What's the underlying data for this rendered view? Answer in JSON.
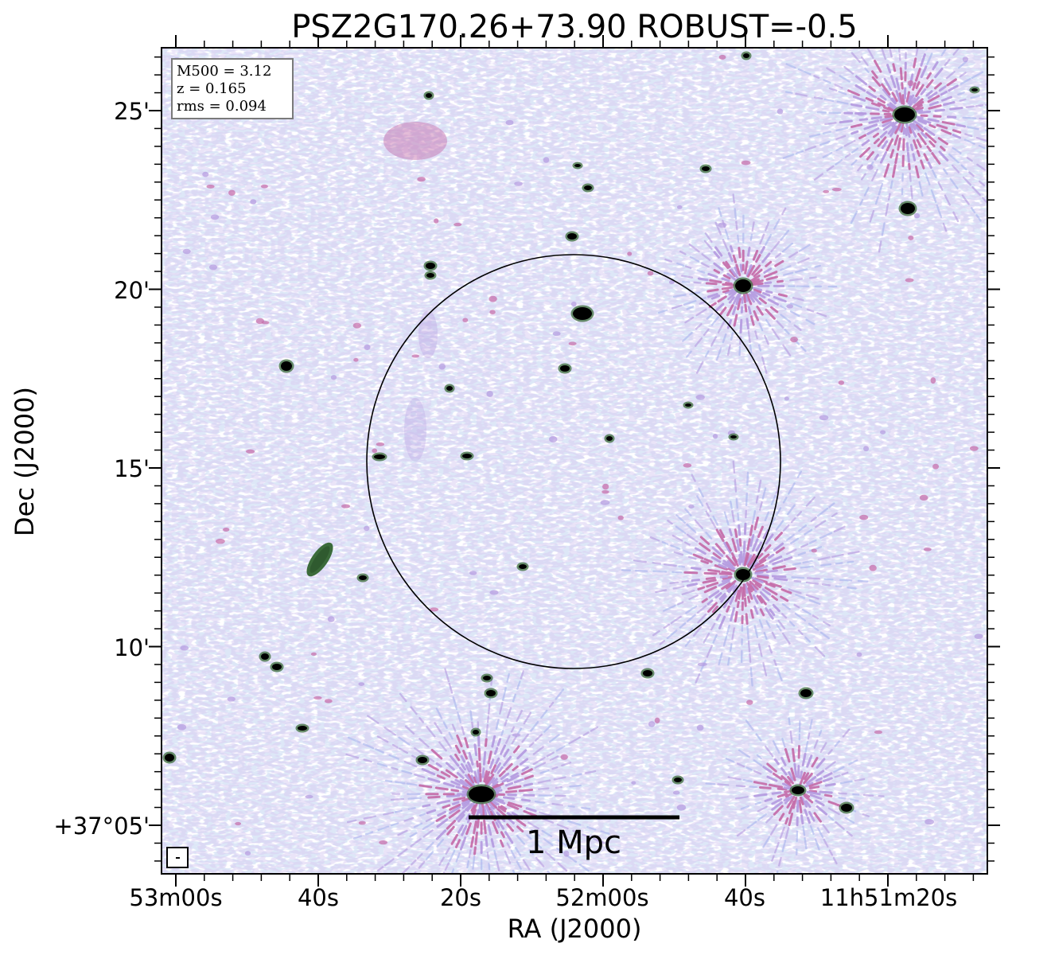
{
  "figure": {
    "title": "PSZ2G170.26+73.90 ROBUST=-0.5",
    "xlabel": "RA (J2000)",
    "ylabel": "Dec (J2000)"
  },
  "info_box": {
    "line1": "M500 = 3.12",
    "line2": "z = 0.165",
    "line3": "rms = 0.094"
  },
  "scale_bar": {
    "label": "1 Mpc"
  },
  "ticks": {
    "x": [
      "53m00s",
      "40s",
      "20s",
      "52m00s",
      "40s",
      "11h51m20s"
    ],
    "y": [
      "25'",
      "20'",
      "15'",
      "10'",
      "+37°05'"
    ]
  },
  "colors": {
    "background": "#ffffff",
    "noise_light": "#b8cdea",
    "noise_mid": "#a8b4ee",
    "noise_purple": "#b49ae0",
    "noise_magenta": "#c46aa8",
    "source_core": "#000000",
    "source_rim": "#3b6b3a",
    "circle": "#000000"
  }
}
